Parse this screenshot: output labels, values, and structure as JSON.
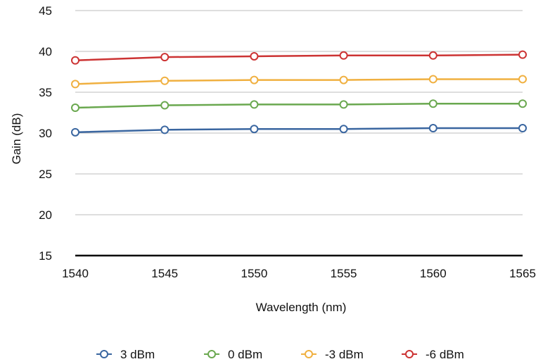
{
  "chart_data": {
    "type": "line",
    "title": "",
    "xlabel": "Wavelength (nm)",
    "ylabel": "Gain (dB)",
    "x": [
      1540,
      1545,
      1550,
      1555,
      1560,
      1565
    ],
    "xticks": [
      "1540",
      "1545",
      "1550",
      "1555",
      "1560",
      "1565"
    ],
    "yticks": [
      "15",
      "20",
      "25",
      "30",
      "35",
      "40",
      "45"
    ],
    "xlim": [
      1540,
      1565
    ],
    "ylim": [
      15,
      45
    ],
    "grid": "horizontal",
    "legend_position": "bottom",
    "series": [
      {
        "name": "3 dBm",
        "color": "#3A66A0",
        "values": [
          30.1,
          30.4,
          30.5,
          30.5,
          30.6,
          30.6
        ]
      },
      {
        "name": "0 dBm",
        "color": "#6AA84F",
        "values": [
          33.1,
          33.4,
          33.5,
          33.5,
          33.6,
          33.6
        ]
      },
      {
        "name": "-3 dBm",
        "color": "#F0B040",
        "values": [
          36.0,
          36.4,
          36.5,
          36.5,
          36.6,
          36.6
        ]
      },
      {
        "name": "-6 dBm",
        "color": "#CC3333",
        "values": [
          38.9,
          39.3,
          39.4,
          39.5,
          39.5,
          39.6
        ]
      }
    ]
  }
}
